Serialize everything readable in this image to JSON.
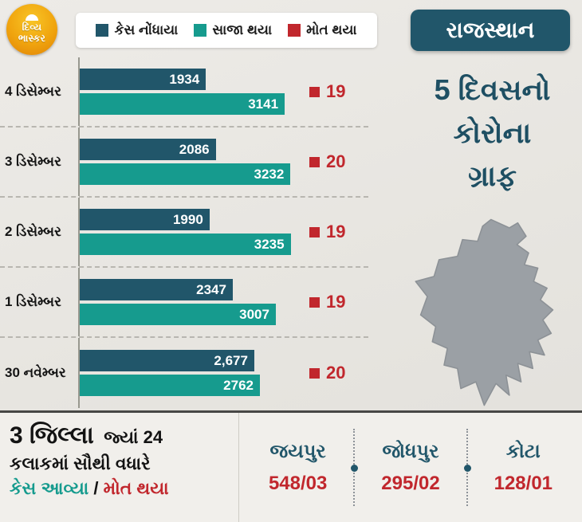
{
  "brand": {
    "logo_line1": "દિવ્ય",
    "logo_line2": "ભાસ્કર"
  },
  "legend": {
    "items": [
      {
        "label": "કેસ નોંધાયા",
        "color": "#21566a"
      },
      {
        "label": "સાજા થયા",
        "color": "#169b8e"
      },
      {
        "label": "મોત થયા",
        "color": "#c1272d"
      }
    ]
  },
  "right_panel": {
    "state_label": "રાજસ્થાન",
    "title_lines": [
      "5 દિવસનો",
      "કોરોના",
      "ગ્રાફ"
    ]
  },
  "chart_data": {
    "type": "bar",
    "orientation": "horizontal",
    "title": "રાજસ્થાન – 5 દિવસનો કોરોના ગ્રાફ",
    "xlabel": "",
    "ylabel": "",
    "xmax": 3300,
    "grid": false,
    "legend_position": "top",
    "categories": [
      "4 ડિસેમ્બર",
      "3 ડિસેમ્બર",
      "2 ડિસેમ્બર",
      "1 ડિસેમ્બર",
      "30 નવેમ્બર"
    ],
    "series": [
      {
        "name": "કેસ નોંધાયા",
        "color": "#21566a",
        "values": [
          1934,
          2086,
          1990,
          2347,
          2677
        ]
      },
      {
        "name": "સાજા થયા",
        "color": "#169b8e",
        "values": [
          3141,
          3232,
          3235,
          3007,
          2762
        ]
      },
      {
        "name": "મોત થયા",
        "color": "#c1272d",
        "values": [
          19,
          20,
          19,
          19,
          20
        ]
      }
    ],
    "value_labels": [
      [
        "1934",
        "3141",
        "19"
      ],
      [
        "2086",
        "3232",
        "20"
      ],
      [
        "1990",
        "3235",
        "19"
      ],
      [
        "2347",
        "3007",
        "19"
      ],
      [
        "2,677",
        "2762",
        "20"
      ]
    ]
  },
  "bottom": {
    "headline_part1": "3 જિલ્લા",
    "headline_part2": "જ્યાં 24",
    "headline_line2": "કલાકમાં સૌથી વધારે",
    "headline_cases": "કેસ આવ્યા",
    "headline_sep": " / ",
    "headline_deaths": "મોત થયા",
    "districts": [
      {
        "name": "જયપુર",
        "value": "548/03"
      },
      {
        "name": "જોધપુર",
        "value": "295/02"
      },
      {
        "name": "કોટા",
        "value": "128/01"
      }
    ]
  },
  "colors": {
    "cases": "#21566a",
    "recovered": "#169b8e",
    "deaths": "#c1272d",
    "background": "#e8e6e1",
    "panel_text": "#1e4f63",
    "map_gray": "#9ba0a5"
  }
}
